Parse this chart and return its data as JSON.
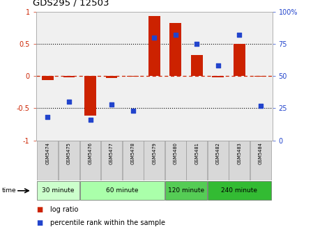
{
  "title": "GDS295 / 12503",
  "samples": [
    "GSM5474",
    "GSM5475",
    "GSM5476",
    "GSM5477",
    "GSM5478",
    "GSM5479",
    "GSM5480",
    "GSM5481",
    "GSM5482",
    "GSM5483",
    "GSM5484"
  ],
  "log_ratio": [
    -0.06,
    -0.02,
    -0.62,
    -0.03,
    -0.01,
    0.93,
    0.82,
    0.33,
    -0.02,
    0.5,
    -0.01
  ],
  "percentile": [
    18,
    30,
    16,
    28,
    23,
    80,
    82,
    75,
    58,
    82,
    27
  ],
  "groups": [
    {
      "label": "30 minute",
      "start": 0,
      "end": 2,
      "color": "#ccffcc"
    },
    {
      "label": "60 minute",
      "start": 2,
      "end": 6,
      "color": "#aaffaa"
    },
    {
      "label": "120 minute",
      "start": 6,
      "end": 8,
      "color": "#55cc55"
    },
    {
      "label": "240 minute",
      "start": 8,
      "end": 11,
      "color": "#33bb33"
    }
  ],
  "bar_color": "#cc2200",
  "dot_color": "#2244cc",
  "ref_line_color": "#cc2200",
  "ylim_left": [
    -1,
    1
  ],
  "ylim_right": [
    0,
    100
  ],
  "yticks_left": [
    -1,
    -0.5,
    0,
    0.5,
    1
  ],
  "yticks_right": [
    0,
    25,
    50,
    75,
    100
  ],
  "bg_color": "#ffffff",
  "plot_bg_color": "#f0f0f0"
}
